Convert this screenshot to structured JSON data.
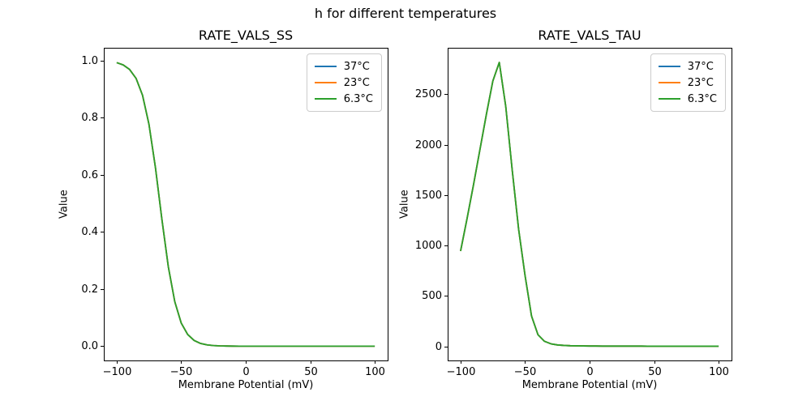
{
  "figure": {
    "title": "h for different temperatures",
    "background_color": "#ffffff"
  },
  "legend": {
    "position": "upper right",
    "entries": [
      {
        "label": "37°C",
        "color": "#1f77b4"
      },
      {
        "label": "23°C",
        "color": "#ff7f0e"
      },
      {
        "label": "6.3°C",
        "color": "#2ca02c"
      }
    ]
  },
  "chart_data": [
    {
      "type": "line",
      "title": "RATE_VALS_SS",
      "xlabel": "Membrane Potential (mV)",
      "ylabel": "Value",
      "xlim": [
        -110,
        110
      ],
      "ylim": [
        -0.05,
        1.045
      ],
      "xticks": [
        -100,
        -50,
        0,
        50,
        100
      ],
      "xtick_labels": [
        "−100",
        "−50",
        "0",
        "50",
        "100"
      ],
      "yticks": [
        0.0,
        0.2,
        0.4,
        0.6,
        0.8,
        1.0
      ],
      "ytick_labels": [
        "0.0",
        "0.2",
        "0.4",
        "0.6",
        "0.8",
        "1.0"
      ],
      "grid": false,
      "legend_position": "upper right",
      "x": [
        -100,
        -95,
        -90,
        -85,
        -80,
        -75,
        -70,
        -65,
        -60,
        -55,
        -50,
        -45,
        -40,
        -35,
        -30,
        -25,
        -20,
        -15,
        -10,
        -5,
        0,
        5,
        10,
        15,
        20,
        25,
        30,
        35,
        40,
        45,
        50,
        55,
        60,
        65,
        70,
        75,
        80,
        85,
        90,
        95,
        100
      ],
      "series": [
        {
          "name": "37°C",
          "color": "#1f77b4",
          "values": [
            0.993,
            0.985,
            0.969,
            0.938,
            0.879,
            0.777,
            0.626,
            0.445,
            0.278,
            0.156,
            0.081,
            0.041,
            0.02,
            0.0095,
            0.0046,
            0.0022,
            0.001,
            0.0005,
            0.0002,
            0.0001,
            0.0001,
            0,
            0,
            0,
            0,
            0,
            0,
            0,
            0,
            0,
            0,
            0,
            0,
            0,
            0,
            0,
            0,
            0,
            0,
            0,
            0
          ]
        },
        {
          "name": "23°C",
          "color": "#ff7f0e",
          "values": [
            0.993,
            0.985,
            0.969,
            0.938,
            0.879,
            0.777,
            0.626,
            0.445,
            0.278,
            0.156,
            0.081,
            0.041,
            0.02,
            0.0095,
            0.0046,
            0.0022,
            0.001,
            0.0005,
            0.0002,
            0.0001,
            0.0001,
            0,
            0,
            0,
            0,
            0,
            0,
            0,
            0,
            0,
            0,
            0,
            0,
            0,
            0,
            0,
            0,
            0,
            0,
            0,
            0
          ]
        },
        {
          "name": "6.3°C",
          "color": "#2ca02c",
          "values": [
            0.993,
            0.985,
            0.969,
            0.938,
            0.879,
            0.777,
            0.626,
            0.445,
            0.278,
            0.156,
            0.081,
            0.041,
            0.02,
            0.0095,
            0.0046,
            0.0022,
            0.001,
            0.0005,
            0.0002,
            0.0001,
            0.0001,
            0,
            0,
            0,
            0,
            0,
            0,
            0,
            0,
            0,
            0,
            0,
            0,
            0,
            0,
            0,
            0,
            0,
            0,
            0,
            0
          ]
        }
      ]
    },
    {
      "type": "line",
      "title": "RATE_VALS_TAU",
      "xlabel": "Membrane Potential (mV)",
      "ylabel": "Value",
      "xlim": [
        -110,
        110
      ],
      "ylim": [
        -140,
        2960
      ],
      "xticks": [
        -100,
        -50,
        0,
        50,
        100
      ],
      "xtick_labels": [
        "−100",
        "−50",
        "0",
        "50",
        "100"
      ],
      "yticks": [
        0,
        500,
        1000,
        1500,
        2000,
        2500
      ],
      "ytick_labels": [
        "0",
        "500",
        "1000",
        "1500",
        "2000",
        "2500"
      ],
      "grid": false,
      "legend_position": "upper right",
      "x": [
        -100,
        -95,
        -90,
        -85,
        -80,
        -75,
        -70,
        -65,
        -60,
        -55,
        -50,
        -45,
        -40,
        -35,
        -30,
        -25,
        -20,
        -15,
        -10,
        -5,
        0,
        5,
        10,
        15,
        20,
        25,
        30,
        35,
        40,
        45,
        50,
        55,
        60,
        65,
        70,
        75,
        80,
        85,
        90,
        95,
        100
      ],
      "series": [
        {
          "name": "37°C",
          "color": "#1f77b4",
          "values": [
            945,
            1265,
            1600,
            1950,
            2300,
            2630,
            2815,
            2380,
            1750,
            1160,
            700,
            300,
            115,
            50,
            25,
            14,
            9,
            6,
            5,
            4,
            3,
            3,
            2,
            2,
            2,
            2,
            2,
            2,
            2,
            1,
            1,
            1,
            1,
            1,
            1,
            1,
            1,
            1,
            1,
            1,
            1
          ]
        },
        {
          "name": "23°C",
          "color": "#ff7f0e",
          "values": [
            945,
            1265,
            1600,
            1950,
            2300,
            2630,
            2815,
            2380,
            1750,
            1160,
            700,
            300,
            115,
            50,
            25,
            14,
            9,
            6,
            5,
            4,
            3,
            3,
            2,
            2,
            2,
            2,
            2,
            2,
            2,
            1,
            1,
            1,
            1,
            1,
            1,
            1,
            1,
            1,
            1,
            1,
            1
          ]
        },
        {
          "name": "6.3°C",
          "color": "#2ca02c",
          "values": [
            945,
            1265,
            1600,
            1950,
            2300,
            2630,
            2815,
            2380,
            1750,
            1160,
            700,
            300,
            115,
            50,
            25,
            14,
            9,
            6,
            5,
            4,
            3,
            3,
            2,
            2,
            2,
            2,
            2,
            2,
            2,
            1,
            1,
            1,
            1,
            1,
            1,
            1,
            1,
            1,
            1,
            1,
            1
          ]
        }
      ]
    }
  ]
}
